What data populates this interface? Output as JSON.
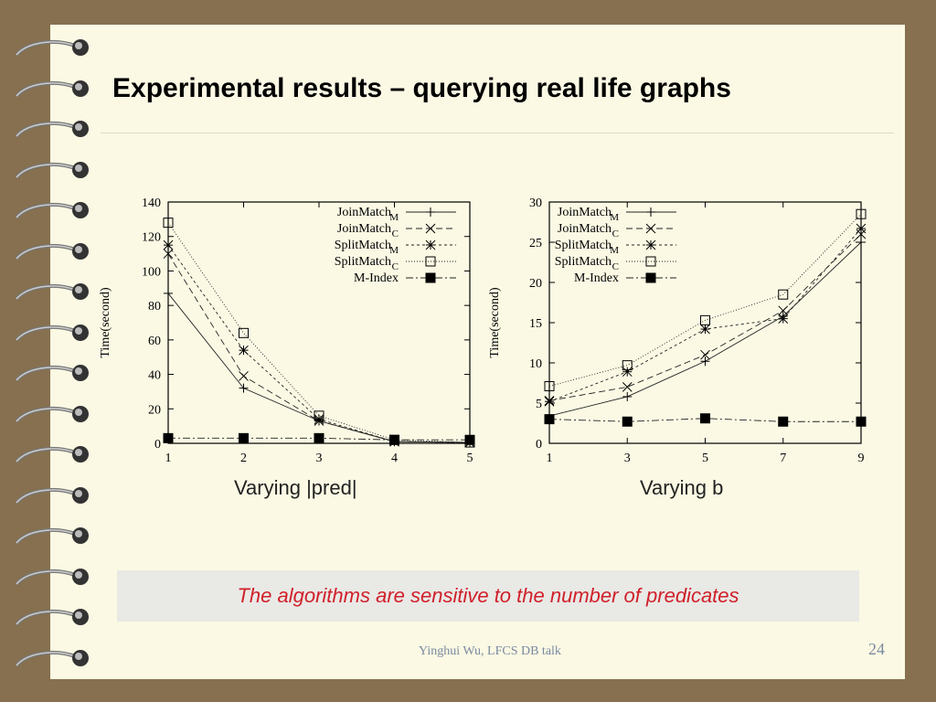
{
  "slide": {
    "title": "Experimental results – querying real life graphs",
    "caption": "The algorithms are sensitive to the number of predicates",
    "footer": "Yinghui Wu, LFCS DB talk",
    "page_number": "24",
    "caption_color": "#d0202a"
  },
  "chart_data": [
    {
      "type": "line",
      "title": "Varying |pred|",
      "xlabel": "Varying |pred|",
      "ylabel": "Time(second)",
      "x": [
        1,
        2,
        3,
        4,
        5
      ],
      "xticks": [
        1,
        2,
        3,
        4,
        5
      ],
      "yticks": [
        0,
        20,
        40,
        60,
        80,
        100,
        120,
        140
      ],
      "xlim": [
        1,
        5
      ],
      "ylim": [
        0,
        140
      ],
      "legend": "top-right",
      "series": [
        {
          "name": "JoinMatch",
          "sub": "M",
          "marker": "plus",
          "values": [
            87,
            32,
            13,
            1,
            0.5
          ]
        },
        {
          "name": "JoinMatch",
          "sub": "C",
          "marker": "cross",
          "values": [
            110,
            39,
            13,
            1,
            0.5
          ]
        },
        {
          "name": "SplitMatch",
          "sub": "M",
          "marker": "star",
          "values": [
            115,
            54,
            14,
            1,
            0.5
          ]
        },
        {
          "name": "SplitMatch",
          "sub": "C",
          "marker": "open-square",
          "values": [
            128,
            64,
            16,
            2,
            0.5
          ]
        },
        {
          "name": "M-Index",
          "sub": "",
          "marker": "filled-square",
          "values": [
            3,
            3,
            3,
            2,
            2
          ]
        }
      ]
    },
    {
      "type": "line",
      "title": "Varying b",
      "xlabel": "Varying b",
      "ylabel": "Time(second)",
      "x": [
        1,
        3,
        5,
        7,
        9
      ],
      "xticks": [
        1,
        3,
        5,
        7,
        9
      ],
      "yticks": [
        0,
        5,
        10,
        15,
        20,
        25,
        30
      ],
      "xlim": [
        1,
        9
      ],
      "ylim": [
        0,
        30
      ],
      "legend": "top-left",
      "series": [
        {
          "name": "JoinMatch",
          "sub": "M",
          "marker": "plus",
          "values": [
            3.4,
            5.8,
            10.2,
            15.8,
            25
          ]
        },
        {
          "name": "JoinMatch",
          "sub": "C",
          "marker": "cross",
          "values": [
            5.3,
            7.0,
            11.0,
            16.5,
            26
          ]
        },
        {
          "name": "SplitMatch",
          "sub": "M",
          "marker": "star",
          "values": [
            5.2,
            8.9,
            14.2,
            15.5,
            26.7
          ]
        },
        {
          "name": "SplitMatch",
          "sub": "C",
          "marker": "open-square",
          "values": [
            7.1,
            9.7,
            15.3,
            18.5,
            28.5
          ]
        },
        {
          "name": "M-Index",
          "sub": "",
          "marker": "filled-square",
          "values": [
            3.0,
            2.7,
            3.1,
            2.7,
            2.7
          ]
        }
      ]
    }
  ]
}
